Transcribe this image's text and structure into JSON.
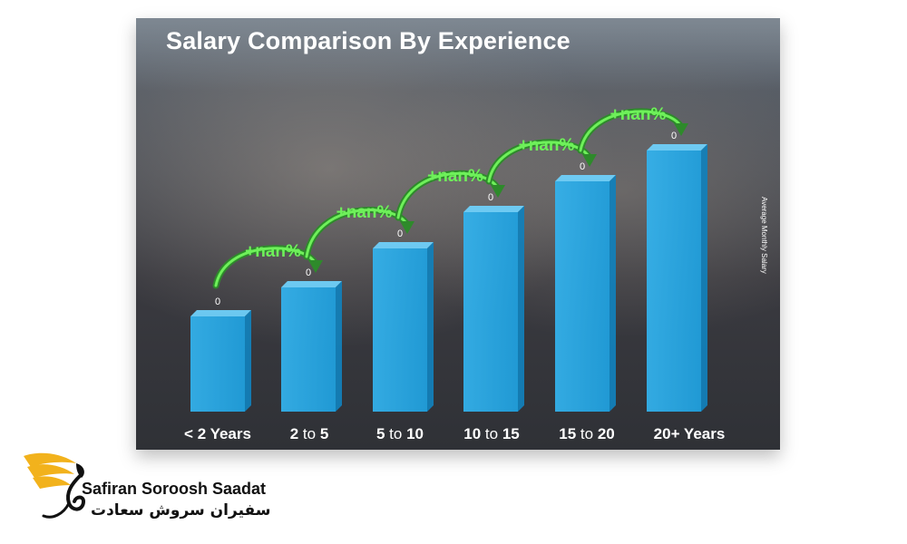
{
  "chart_data": {
    "type": "bar",
    "title": "Salary Comparison By Experience",
    "ylabel": "Average Monthly Salary",
    "categories": [
      "< 2 Years",
      "2 to 5",
      "5 to 10",
      "10 to 15",
      "15 to 20",
      "20+ Years"
    ],
    "values": [
      0,
      0,
      0,
      0,
      0,
      0
    ],
    "value_labels": [
      "0",
      "0",
      "0",
      "0",
      "0",
      "0"
    ],
    "increase_labels": [
      "+nan%",
      "+nan%",
      "+nan%",
      "+nan%",
      "+nan%"
    ],
    "bar_color": "#1fa1e0",
    "increase_color": "#6ef05a",
    "legend": "none",
    "grid": false
  },
  "brand": {
    "name_en": "Safiran Soroosh Saadat",
    "name_fa": "سفیران سروش سعادت"
  },
  "colors": {
    "logo_gold": "#f2b21c",
    "logo_black": "#111111"
  },
  "icons": {
    "logo": "phoenix-bird-icon"
  }
}
